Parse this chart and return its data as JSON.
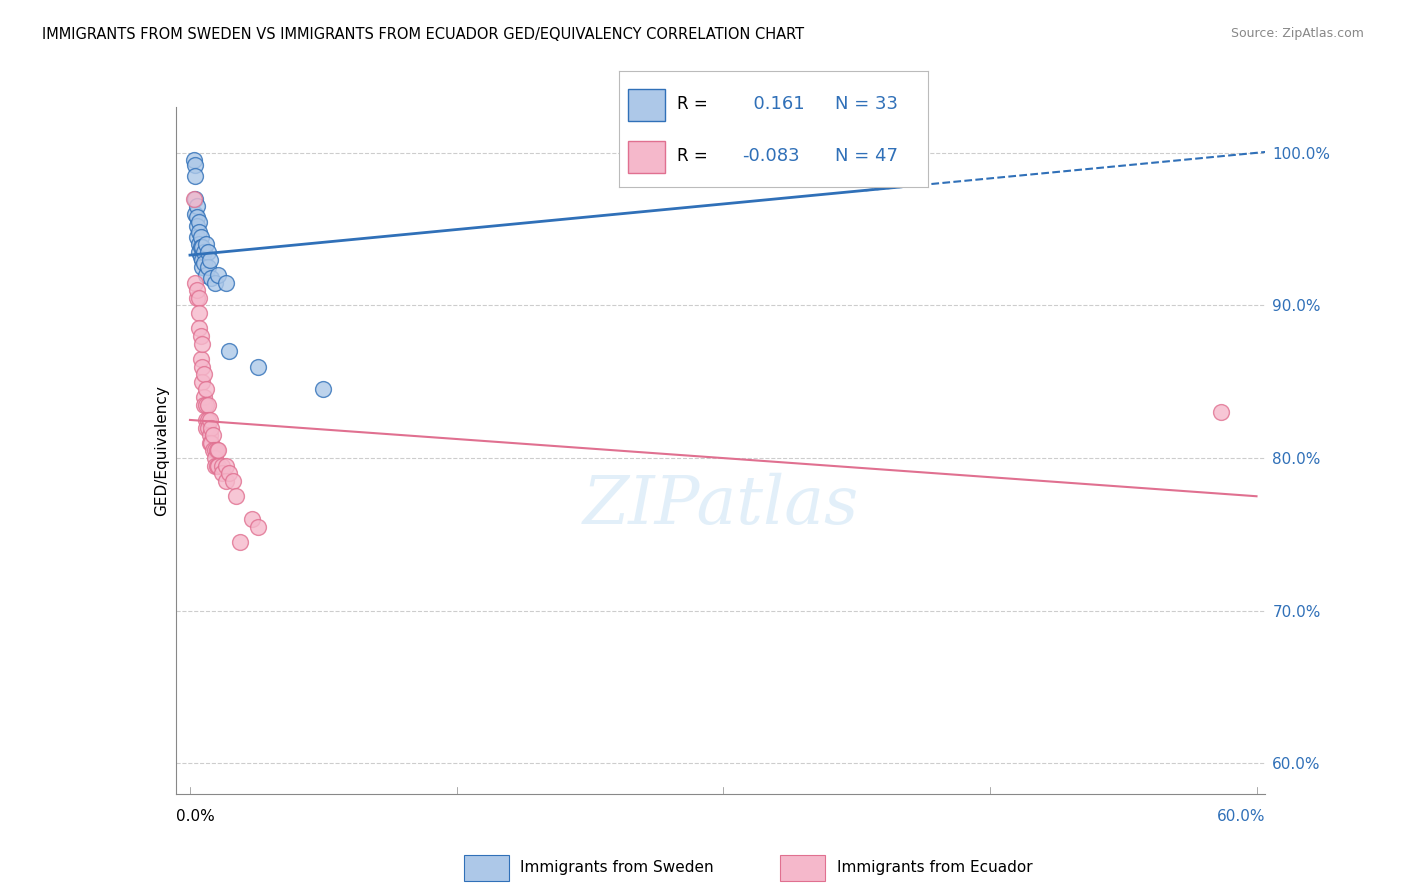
{
  "title": "IMMIGRANTS FROM SWEDEN VS IMMIGRANTS FROM ECUADOR GED/EQUIVALENCY CORRELATION CHART",
  "source": "Source: ZipAtlas.com",
  "ylabel": "GED/Equivalency",
  "yticks": [
    60.0,
    70.0,
    80.0,
    90.0,
    100.0
  ],
  "ytick_labels": [
    "60.0%",
    "70.0%",
    "80.0%",
    "90.0%",
    "100.0%"
  ],
  "xlim": [
    0.0,
    0.6
  ],
  "ylim": [
    58.0,
    103.0
  ],
  "sweden_color": "#adc8e8",
  "ecuador_color": "#f5b8cb",
  "sweden_line_color": "#3070b8",
  "ecuador_line_color": "#e07090",
  "sweden_R": 0.161,
  "sweden_N": 33,
  "ecuador_R": -0.083,
  "ecuador_N": 47,
  "legend_label_sweden": "Immigrants from Sweden",
  "legend_label_ecuador": "Immigrants from Ecuador",
  "sweden_x": [
    0.002,
    0.003,
    0.003,
    0.003,
    0.003,
    0.004,
    0.004,
    0.004,
    0.004,
    0.005,
    0.005,
    0.005,
    0.005,
    0.006,
    0.006,
    0.006,
    0.007,
    0.007,
    0.007,
    0.008,
    0.008,
    0.009,
    0.009,
    0.01,
    0.01,
    0.011,
    0.012,
    0.014,
    0.016,
    0.02,
    0.022,
    0.038,
    0.075
  ],
  "sweden_y": [
    99.5,
    99.2,
    98.5,
    97.0,
    96.0,
    96.5,
    95.8,
    95.2,
    94.5,
    95.5,
    94.8,
    94.0,
    93.5,
    94.5,
    93.8,
    93.2,
    93.8,
    93.0,
    92.5,
    93.5,
    92.8,
    94.0,
    92.0,
    93.5,
    92.5,
    93.0,
    91.8,
    91.5,
    92.0,
    91.5,
    87.0,
    86.0,
    84.5
  ],
  "ecuador_x": [
    0.002,
    0.003,
    0.004,
    0.004,
    0.005,
    0.005,
    0.005,
    0.006,
    0.006,
    0.007,
    0.007,
    0.007,
    0.008,
    0.008,
    0.008,
    0.009,
    0.009,
    0.009,
    0.009,
    0.01,
    0.01,
    0.01,
    0.011,
    0.011,
    0.011,
    0.012,
    0.012,
    0.013,
    0.013,
    0.014,
    0.014,
    0.014,
    0.015,
    0.015,
    0.016,
    0.016,
    0.018,
    0.018,
    0.02,
    0.02,
    0.022,
    0.024,
    0.026,
    0.028,
    0.035,
    0.038,
    0.58
  ],
  "ecuador_y": [
    97.0,
    91.5,
    90.5,
    91.0,
    90.5,
    89.5,
    88.5,
    88.0,
    86.5,
    87.5,
    86.0,
    85.0,
    85.5,
    84.0,
    83.5,
    84.5,
    83.5,
    82.5,
    82.0,
    83.5,
    82.5,
    82.0,
    82.5,
    81.5,
    81.0,
    82.0,
    81.0,
    81.5,
    80.5,
    80.5,
    80.0,
    79.5,
    80.5,
    79.5,
    80.5,
    79.5,
    79.5,
    79.0,
    79.5,
    78.5,
    79.0,
    78.5,
    77.5,
    74.5,
    76.0,
    75.5,
    83.0
  ],
  "watermark": "ZIPatlas",
  "background_color": "#ffffff",
  "grid_color": "#c8c8c8"
}
